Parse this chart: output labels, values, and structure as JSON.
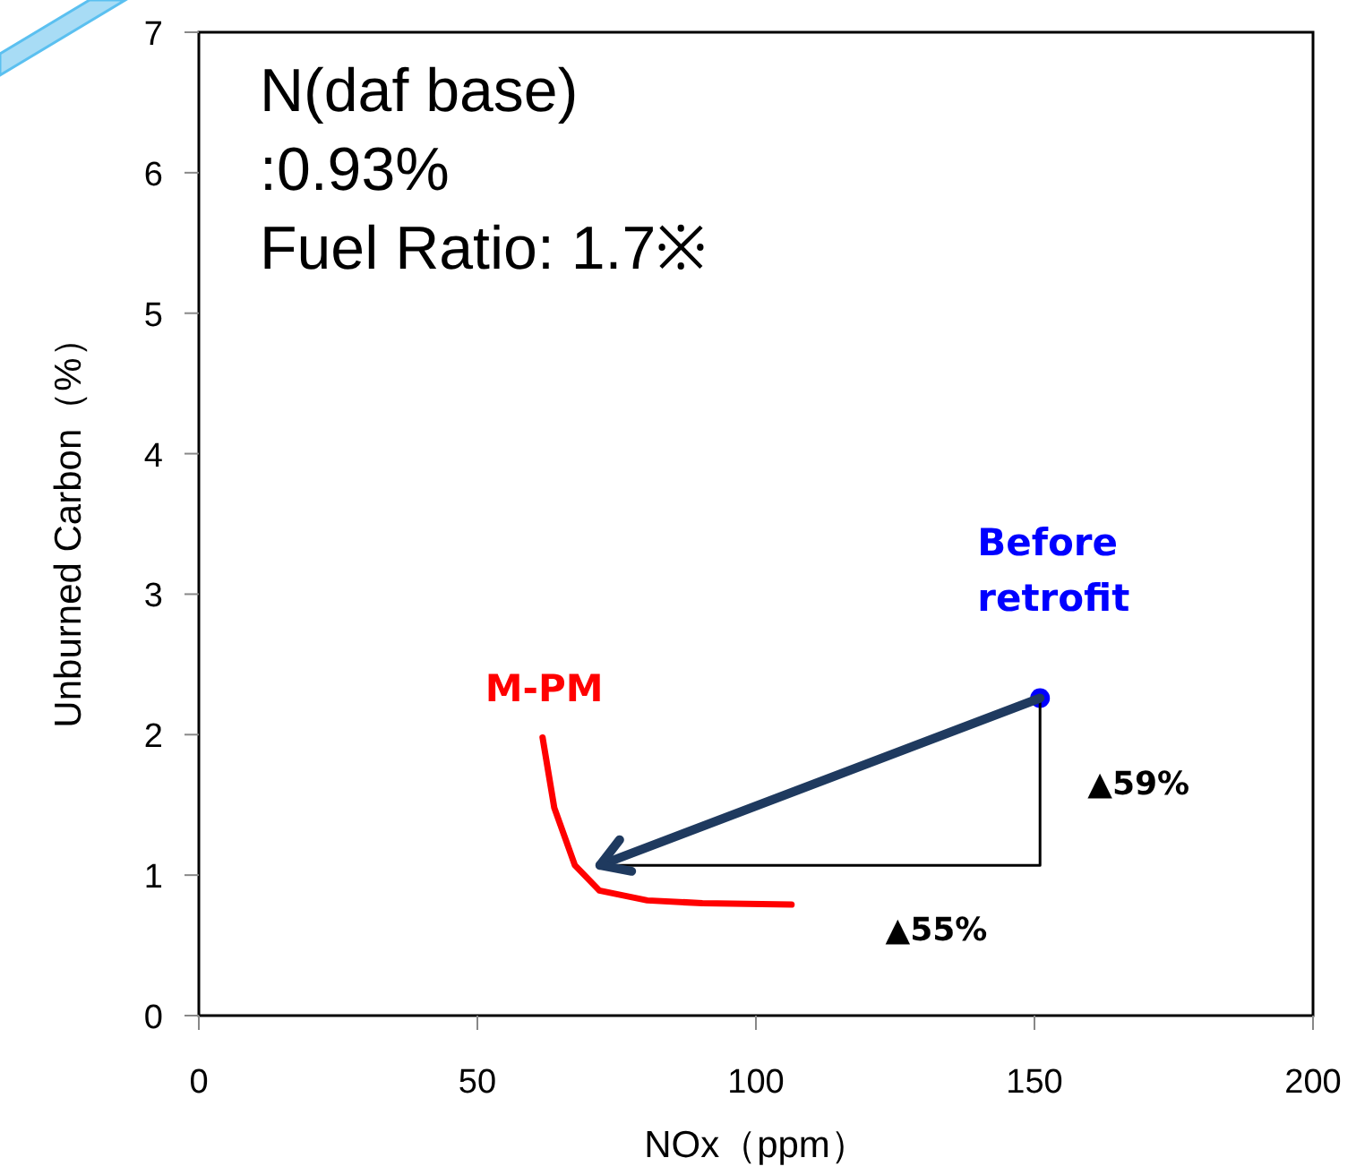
{
  "chart_data": {
    "type": "line",
    "xlabel": "NOx（ppm）",
    "ylabel": "Unburned Carbon（%）",
    "xlim": [
      0,
      200
    ],
    "xticks": [
      0,
      50,
      100,
      150,
      200
    ],
    "ylim": [
      0,
      7
    ],
    "yticks": [
      0,
      1,
      2,
      3,
      4,
      5,
      6,
      7
    ],
    "series": [
      {
        "name": "M-PM",
        "color": "#ff0000",
        "x": [
          61.7,
          63.8,
          67.5,
          71.9,
          80.5,
          90.4,
          106.4
        ],
        "values": [
          1.98,
          1.48,
          1.07,
          0.89,
          0.82,
          0.8,
          0.79
        ]
      },
      {
        "name": "Before retrofit",
        "type": "scatter",
        "color": "#0000ff",
        "x": [
          151
        ],
        "values": [
          2.26
        ]
      },
      {
        "color": "#000000",
        "x": [
          72,
          151,
          151
        ],
        "values": [
          1.07,
          1.07,
          2.26
        ]
      }
    ],
    "annotations": [
      "N(daf base)\n:0.93%\nFuel Ratio: 1.7※",
      "▲59%",
      "▲55%"
    ]
  }
}
